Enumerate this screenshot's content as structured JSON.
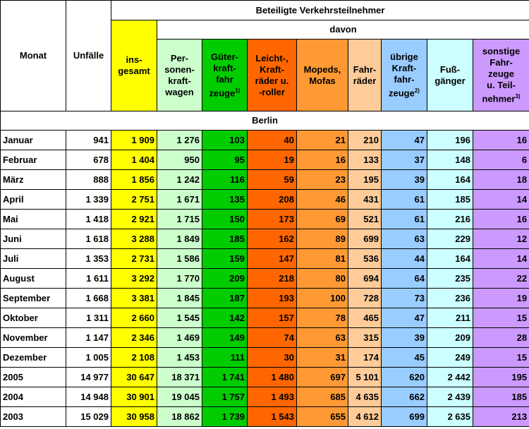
{
  "header": {
    "title": "Beteiligte Verkehrsteilnehmer",
    "davon": "davon",
    "columns": [
      {
        "lines": [
          "Monat"
        ]
      },
      {
        "lines": [
          "Unfälle"
        ]
      },
      {
        "lines": [
          "ins-",
          "gesamt"
        ]
      },
      {
        "lines": [
          "Per-",
          "sonen-",
          "kraft-",
          "wagen"
        ]
      },
      {
        "lines": [
          "Güter-",
          "kraft-",
          "fahr",
          "zeuge"
        ],
        "note": "1)"
      },
      {
        "lines": [
          "Leicht-,",
          "Kraft-",
          "räder u.",
          "-roller"
        ]
      },
      {
        "lines": [
          "Mopeds,",
          "Mofas"
        ]
      },
      {
        "lines": [
          "Fahr-",
          "räder"
        ]
      },
      {
        "lines": [
          "übrige",
          "Kraft-",
          "fahr-",
          "zeuge"
        ],
        "note": "2)"
      },
      {
        "lines": [
          "Fuß-",
          "gänger"
        ]
      },
      {
        "lines": [
          "sonstige",
          "Fahr-",
          "zeuge",
          "u. Teil-",
          "nehmer"
        ],
        "note": "3)"
      }
    ]
  },
  "section": "Berlin",
  "rows": [
    [
      "Januar",
      "941",
      "1 909",
      "1 276",
      "103",
      "40",
      "21",
      "210",
      "47",
      "196",
      "16"
    ],
    [
      "Februar",
      "678",
      "1 404",
      "950",
      "95",
      "19",
      "16",
      "133",
      "37",
      "148",
      "6"
    ],
    [
      "März",
      "888",
      "1 856",
      "1 242",
      "116",
      "59",
      "23",
      "195",
      "39",
      "164",
      "18"
    ],
    [
      "April",
      "1 339",
      "2 751",
      "1 671",
      "135",
      "208",
      "46",
      "431",
      "61",
      "185",
      "14"
    ],
    [
      "Mai",
      "1 418",
      "2 921",
      "1 715",
      "150",
      "173",
      "69",
      "521",
      "61",
      "216",
      "16"
    ],
    [
      "Juni",
      "1 618",
      "3 288",
      "1 849",
      "185",
      "162",
      "89",
      "699",
      "63",
      "229",
      "12"
    ],
    [
      "Juli",
      "1 353",
      "2 731",
      "1 586",
      "159",
      "147",
      "81",
      "536",
      "44",
      "164",
      "14"
    ],
    [
      "August",
      "1 611",
      "3 292",
      "1 770",
      "209",
      "218",
      "80",
      "694",
      "64",
      "235",
      "22"
    ],
    [
      "September",
      "1 668",
      "3 381",
      "1 845",
      "187",
      "193",
      "100",
      "728",
      "73",
      "236",
      "19"
    ],
    [
      "Oktober",
      "1 311",
      "2 660",
      "1 545",
      "142",
      "157",
      "78",
      "465",
      "47",
      "211",
      "15"
    ],
    [
      "November",
      "1 147",
      "2 346",
      "1 469",
      "149",
      "74",
      "63",
      "315",
      "39",
      "209",
      "28"
    ],
    [
      "Dezember",
      "1 005",
      "2 108",
      "1 453",
      "111",
      "30",
      "31",
      "174",
      "45",
      "249",
      "15"
    ],
    [
      "2005",
      "14 977",
      "30 647",
      "18 371",
      "1 741",
      "1 480",
      "697",
      "5 101",
      "620",
      "2 442",
      "195"
    ],
    [
      "2004",
      "14 948",
      "30 901",
      "19 045",
      "1 757",
      "1 493",
      "685",
      "4 635",
      "662",
      "2 439",
      "185"
    ],
    [
      "2003",
      "15 029",
      "30 958",
      "18 862",
      "1 739",
      "1 543",
      "655",
      "4 612",
      "699",
      "2 635",
      "213"
    ]
  ]
}
